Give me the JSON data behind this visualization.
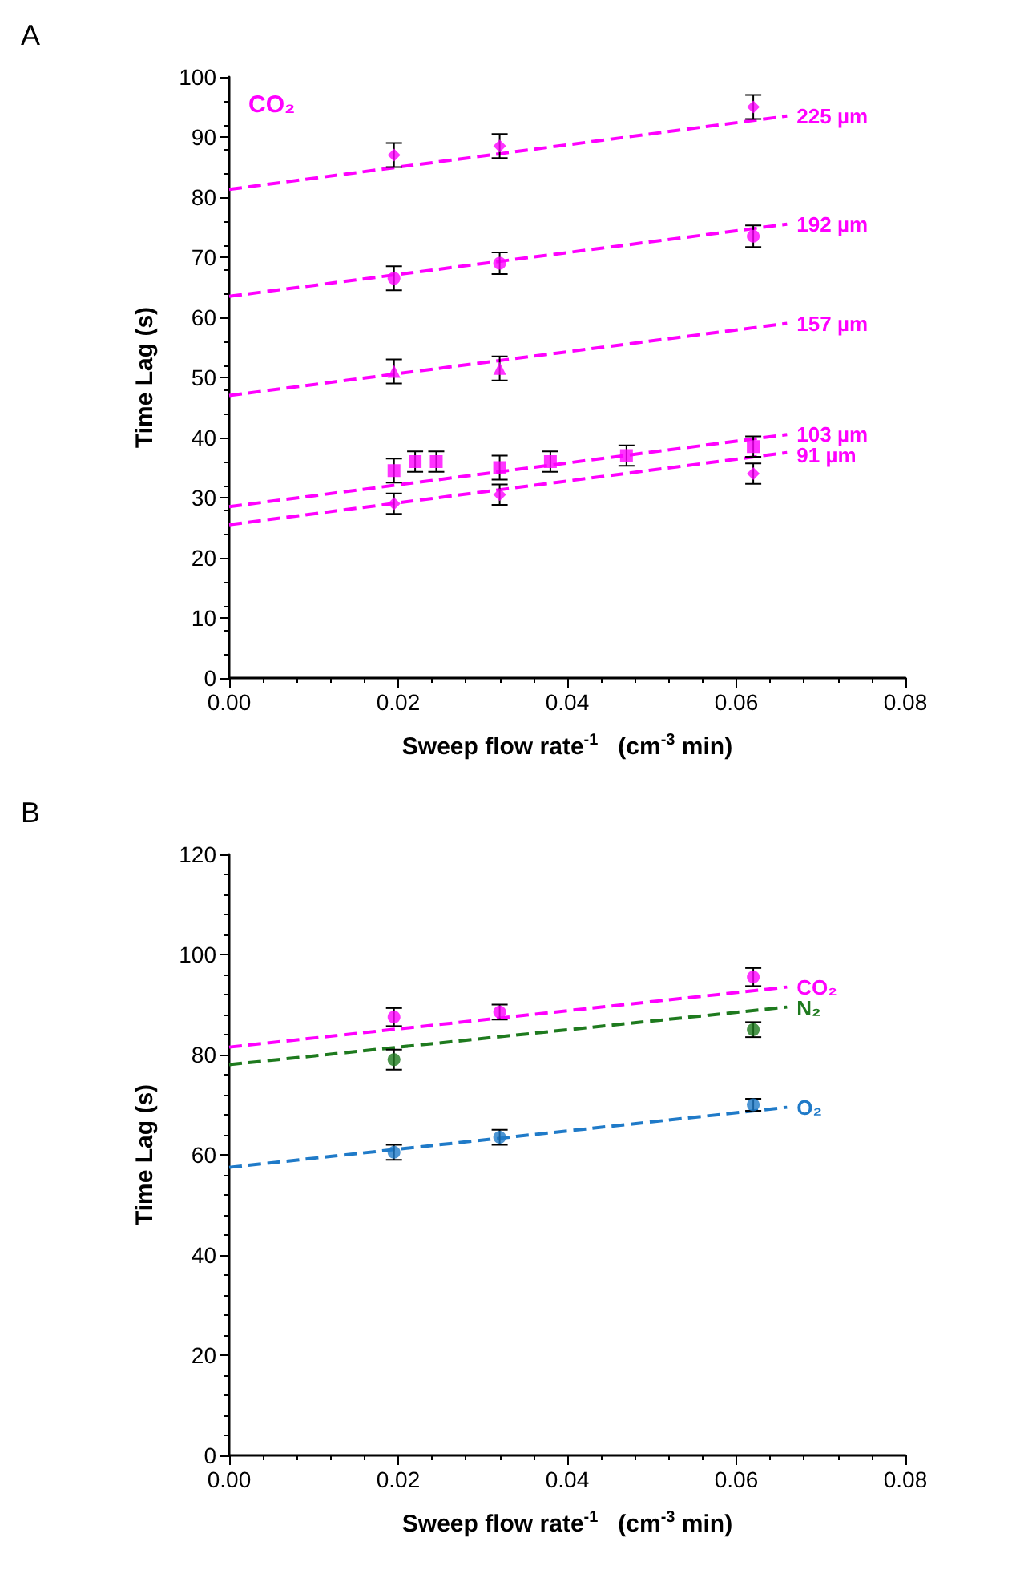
{
  "chart_data": [
    {
      "type": "scatter",
      "title": "A",
      "xlabel": "Sweep flow rate$^{-1}$   (cm$^{-3}$ min)",
      "ylabel": "Time Lag (s)",
      "annotations": [
        "CO₂"
      ],
      "xlim": [
        0,
        0.08
      ],
      "xticks": [
        {
          "value": 0,
          "label": "0.00"
        },
        {
          "value": 0.02,
          "label": "0.02"
        },
        {
          "value": 0.04,
          "label": "0.04"
        },
        {
          "value": 0.06,
          "label": "0.06"
        },
        {
          "value": 0.08,
          "label": "0.08"
        }
      ],
      "ylim": [
        0,
        100
      ],
      "yticks": [
        0,
        10,
        20,
        30,
        40,
        50,
        60,
        70,
        80,
        90,
        100
      ],
      "grid": false,
      "legend": false,
      "series": [
        {
          "color": "#ff00ff",
          "marker": "diamond",
          "x": [
            0.0195,
            0.032,
            0.062
          ],
          "values": [
            87,
            88.5,
            95
          ],
          "errors": [
            2,
            2,
            2
          ]
        },
        {
          "type": "scatter",
          "color": "#ff00ff",
          "marker": "circle",
          "x": [
            0.0195,
            0.032,
            0.062
          ],
          "values": [
            66.5,
            69,
            73.5
          ],
          "errors": [
            2,
            1.8,
            1.8
          ]
        },
        {
          "type": "scatter",
          "color": "#ff00ff",
          "marker": "triangle",
          "x": [
            0.0195,
            0.032
          ],
          "values": [
            51,
            51.5
          ],
          "errors": [
            2,
            2
          ]
        },
        {
          "type": "scatter",
          "color": "#ff00ff",
          "marker": "square",
          "x": [
            0.0195,
            0.022,
            0.0245,
            0.032,
            0.038,
            0.047,
            0.062
          ],
          "values": [
            34.5,
            36,
            36,
            35,
            36,
            37,
            38.5
          ],
          "errors": [
            2,
            1.7,
            1.7,
            2,
            1.7,
            1.7,
            1.7
          ]
        },
        {
          "type": "scatter",
          "color": "#ff00ff",
          "marker": "diamond",
          "x": [
            0.0195,
            0.032,
            0.062
          ],
          "values": [
            29,
            30.5,
            34
          ],
          "errors": [
            1.7,
            1.7,
            1.7
          ]
        },
        {
          "type": "line",
          "name": "225 µm",
          "color": "#ff00ff",
          "marker": "none",
          "line_style": "dashed",
          "x": [
            0,
            0.066
          ],
          "values": [
            81.3,
            93.5
          ]
        },
        {
          "type": "line",
          "name": "192 µm",
          "color": "#ff00ff",
          "marker": "none",
          "line_style": "dashed",
          "x": [
            0,
            0.066
          ],
          "values": [
            63.5,
            75.5
          ]
        },
        {
          "type": "line",
          "name": "157 µm",
          "color": "#ff00ff",
          "marker": "none",
          "line_style": "dashed",
          "x": [
            0,
            0.066
          ],
          "values": [
            47,
            59
          ]
        },
        {
          "type": "line",
          "name": "103 µm",
          "color": "#ff00ff",
          "marker": "none",
          "line_style": "dashed",
          "x": [
            0,
            0.066
          ],
          "values": [
            28.5,
            40.5
          ]
        },
        {
          "type": "line",
          "name": "91 µm",
          "color": "#ff00ff",
          "marker": "none",
          "line_style": "dashed",
          "x": [
            0,
            0.066
          ],
          "values": [
            25.5,
            37.5
          ]
        }
      ]
    },
    {
      "type": "scatter",
      "title": "B",
      "xlabel": "Sweep flow rate$^{-1}$   (cm$^{-3}$ min)",
      "ylabel": "Time Lag (s)",
      "xlim": [
        0,
        0.08
      ],
      "xticks": [
        {
          "value": 0,
          "label": "0.00"
        },
        {
          "value": 0.02,
          "label": "0.02"
        },
        {
          "value": 0.04,
          "label": "0.04"
        },
        {
          "value": 0.06,
          "label": "0.06"
        },
        {
          "value": 0.08,
          "label": "0.08"
        }
      ],
      "ylim": [
        0,
        120
      ],
      "yticks": [
        0,
        20,
        40,
        60,
        80,
        100,
        120
      ],
      "grid": false,
      "legend": false,
      "series": [
        {
          "color": "#ff00ff",
          "marker": "circle",
          "x": [
            0.0195,
            0.032,
            0.062
          ],
          "values": [
            87.5,
            88.5,
            95.5
          ],
          "errors": [
            1.8,
            1.5,
            1.8
          ]
        },
        {
          "type": "scatter",
          "color": "#1e7a1e",
          "marker": "circle",
          "x": [
            0.0195,
            0.062
          ],
          "values": [
            79,
            85
          ],
          "errors": [
            2,
            1.5
          ]
        },
        {
          "type": "scatter",
          "color": "#1f7ac8",
          "marker": "circle",
          "x": [
            0.0195,
            0.032,
            0.062
          ],
          "values": [
            60.5,
            63.5,
            70
          ],
          "errors": [
            1.5,
            1.5,
            1.2
          ]
        },
        {
          "type": "line",
          "name": "CO₂",
          "color": "#ff00ff",
          "marker": "none",
          "line_style": "dashed",
          "x": [
            0,
            0.066
          ],
          "values": [
            81.5,
            93.5
          ]
        },
        {
          "type": "line",
          "name": "N₂",
          "color": "#1e7a1e",
          "marker": "none",
          "line_style": "dashed",
          "x": [
            0,
            0.066
          ],
          "values": [
            78,
            89.5
          ]
        },
        {
          "type": "line",
          "name": "O₂",
          "color": "#1f7ac8",
          "marker": "none",
          "line_style": "dashed",
          "x": [
            0,
            0.066
          ],
          "values": [
            57.5,
            69.5
          ]
        }
      ]
    }
  ]
}
